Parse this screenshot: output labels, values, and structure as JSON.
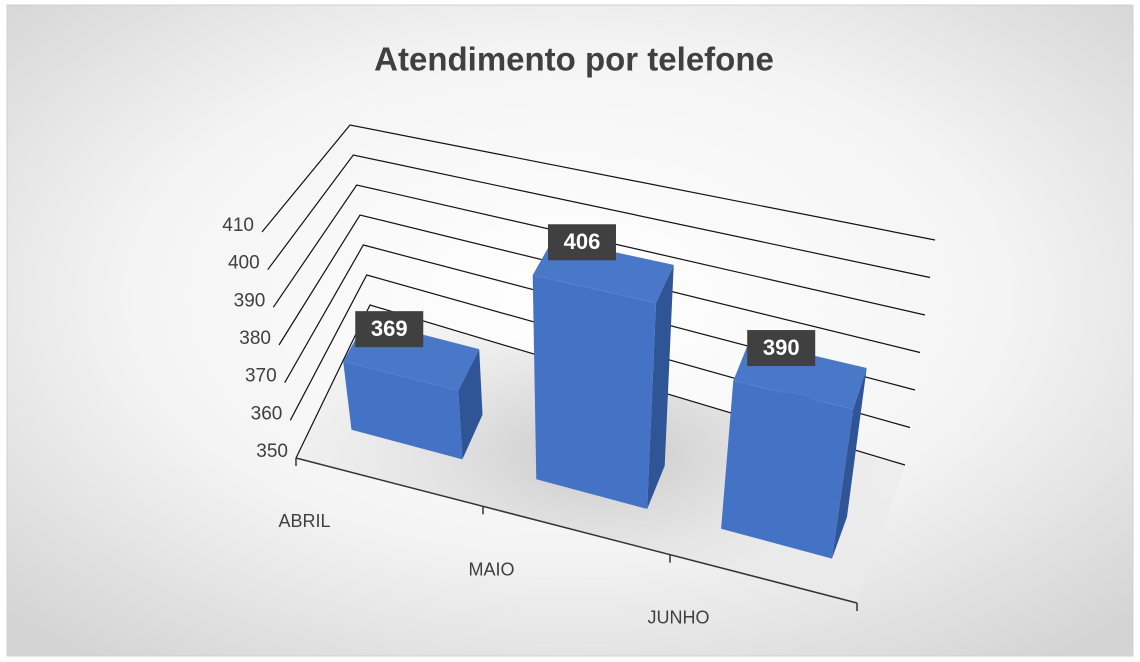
{
  "chart_data": {
    "type": "bar3d",
    "title": "Atendimento por telefone",
    "categories": [
      "ABRIL",
      "MAIO",
      "JUNHO"
    ],
    "values": [
      369,
      406,
      390
    ],
    "color": "#4472c4",
    "ylim": [
      350,
      410
    ],
    "yticks": [
      350,
      360,
      370,
      380,
      390,
      400,
      410
    ],
    "grid": true
  }
}
